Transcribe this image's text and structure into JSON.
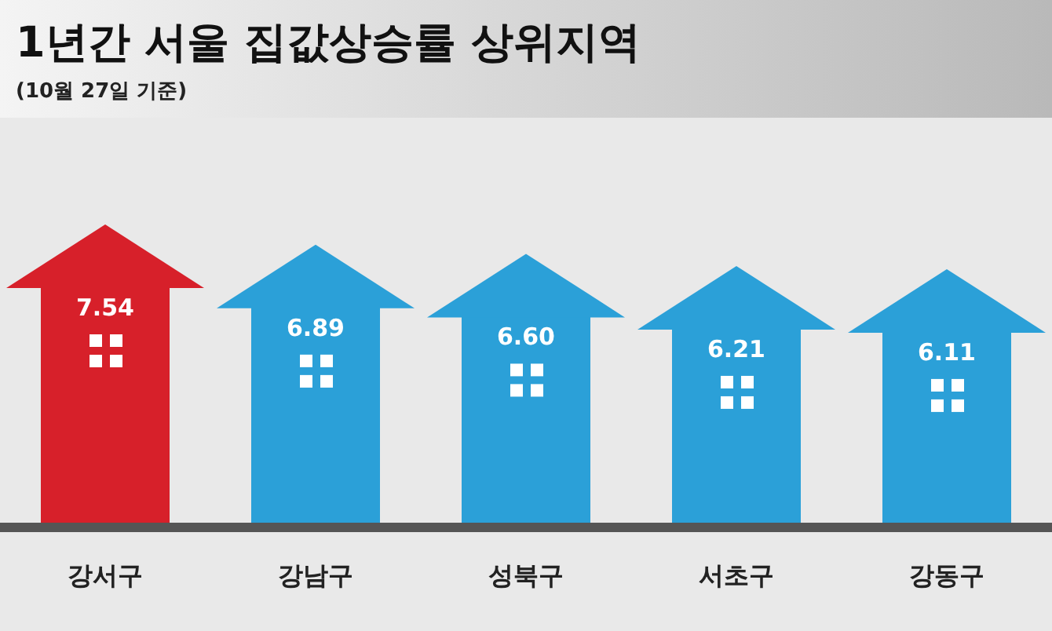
{
  "chart_data": {
    "type": "bar",
    "title": "1년간 서울 집값상승률 상위지역",
    "subtitle": "(10월 27일 기준)",
    "categories": [
      "강서구",
      "강남구",
      "성북구",
      "서초구",
      "강동구"
    ],
    "values": [
      7.54,
      6.89,
      6.6,
      6.21,
      6.11
    ],
    "colors": [
      "#d7202a",
      "#2ba0d8",
      "#2ba0d8",
      "#2ba0d8",
      "#2ba0d8"
    ],
    "value_labels": [
      "7.54",
      "6.89",
      "6.60",
      "6.21",
      "6.11"
    ]
  }
}
